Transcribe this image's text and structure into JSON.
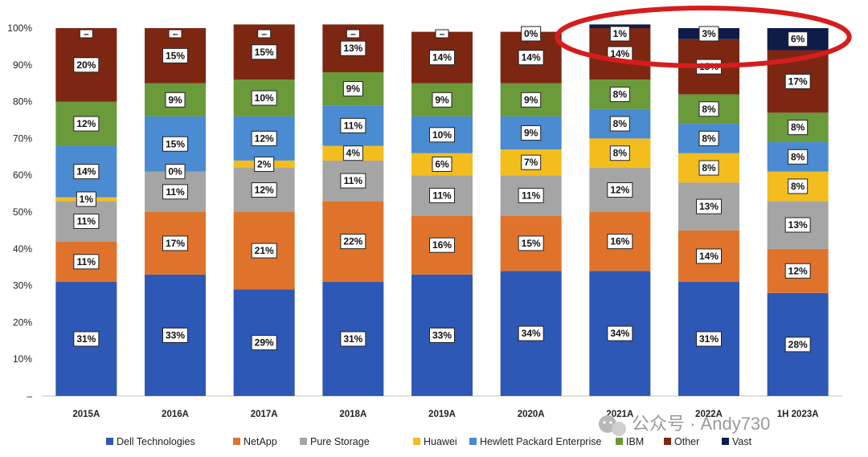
{
  "chart_data": {
    "type": "bar",
    "stacked": true,
    "ylim": [
      0,
      100
    ],
    "y_ticks": [
      "–",
      "10%",
      "20%",
      "30%",
      "40%",
      "50%",
      "60%",
      "70%",
      "80%",
      "90%",
      "100%"
    ],
    "y_tick_values": [
      0,
      10,
      20,
      30,
      40,
      50,
      60,
      70,
      80,
      90,
      100
    ],
    "categories": [
      "2015A",
      "2016A",
      "2017A",
      "2018A",
      "2019A",
      "2020A",
      "2021A",
      "2022A",
      "1H 2023A"
    ],
    "legend_position": "bottom",
    "series": [
      {
        "name": "Dell Technologies",
        "color": "#2e58b5",
        "values": [
          31,
          33,
          29,
          31,
          33,
          34,
          34,
          31,
          28
        ],
        "labels": [
          "31%",
          "33%",
          "29%",
          "31%",
          "33%",
          "34%",
          "34%",
          "31%",
          "28%"
        ]
      },
      {
        "name": "NetApp",
        "color": "#e0732b",
        "values": [
          11,
          17,
          21,
          22,
          16,
          15,
          16,
          14,
          12
        ],
        "labels": [
          "11%",
          "17%",
          "21%",
          "22%",
          "16%",
          "15%",
          "16%",
          "14%",
          "12%"
        ]
      },
      {
        "name": "Pure Storage",
        "color": "#a5a5a5",
        "values": [
          11,
          11,
          12,
          11,
          11,
          11,
          12,
          13,
          13
        ],
        "labels": [
          "11%",
          "11%",
          "12%",
          "11%",
          "11%",
          "11%",
          "12%",
          "13%",
          "13%"
        ]
      },
      {
        "name": "Huawei",
        "color": "#f3bd1d",
        "values": [
          1,
          0,
          2,
          4,
          6,
          7,
          8,
          8,
          8
        ],
        "labels": [
          "1%",
          "0%",
          "2%",
          "4%",
          "6%",
          "7%",
          "8%",
          "8%",
          "8%"
        ]
      },
      {
        "name": "Hewlett Packard Enterprise",
        "color": "#4a8bd1",
        "values": [
          14,
          15,
          12,
          11,
          10,
          9,
          8,
          8,
          8
        ],
        "labels": [
          "14%",
          "15%",
          "12%",
          "11%",
          "10%",
          "9%",
          "8%",
          "8%",
          "8%"
        ]
      },
      {
        "name": "IBM",
        "color": "#6a9a3a",
        "values": [
          12,
          9,
          10,
          9,
          9,
          9,
          8,
          8,
          8
        ],
        "labels": [
          "12%",
          "9%",
          "10%",
          "9%",
          "9%",
          "9%",
          "8%",
          "8%",
          "8%"
        ]
      },
      {
        "name": "Other",
        "color": "#7d2713",
        "values": [
          20,
          15,
          15,
          13,
          14,
          14,
          14,
          15,
          17
        ],
        "labels": [
          "20%",
          "15%",
          "15%",
          "13%",
          "14%",
          "14%",
          "14%",
          "15%",
          "17%"
        ]
      },
      {
        "name": "Vast",
        "color": "#0f1c4a",
        "values": [
          0,
          0,
          0,
          0,
          0,
          0,
          1,
          3,
          6
        ],
        "labels": [
          "–",
          "–",
          "–",
          "–",
          "–",
          "0%",
          "1%",
          "3%",
          "6%"
        ]
      }
    ],
    "annotation": {
      "type": "ellipse",
      "color": "#d51d1d",
      "categories": [
        "2021A",
        "2022A",
        "1H 2023A"
      ]
    }
  },
  "watermark": {
    "text": "公众号 · Andy730",
    "icon": "wechat-icon"
  }
}
